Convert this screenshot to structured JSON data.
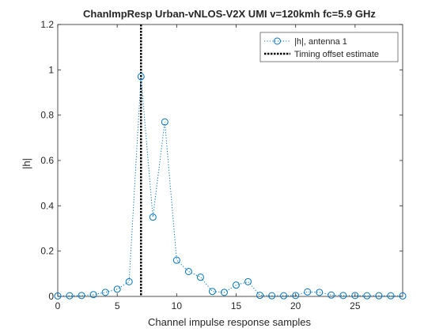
{
  "chart_data": {
    "type": "scatter",
    "title": "ChanImpResp Urban-vNLOS-V2X UMI v=120kmh fc=5.9 GHz",
    "xlabel": "Channel impulse response samples",
    "ylabel": "|h|",
    "xlim": [
      0,
      29
    ],
    "ylim": [
      0,
      1.2
    ],
    "xticks": [
      0,
      5,
      10,
      15,
      20,
      25
    ],
    "yticks": [
      0,
      0.2,
      0.4,
      0.6,
      0.8,
      1,
      1.2
    ],
    "grid": false,
    "legend_position": "top-right",
    "series": [
      {
        "name": "|h|, antenna 1",
        "style": "dotted-line-circle-markers",
        "color": "#0072BD",
        "x": [
          0,
          1,
          2,
          3,
          4,
          5,
          6,
          7,
          8,
          9,
          10,
          11,
          12,
          13,
          14,
          15,
          16,
          17,
          18,
          19,
          20,
          21,
          22,
          23,
          24,
          25,
          26,
          27,
          28,
          29
        ],
        "y": [
          0.002,
          0.003,
          0.004,
          0.008,
          0.018,
          0.032,
          0.065,
          0.97,
          0.35,
          0.77,
          0.16,
          0.11,
          0.085,
          0.022,
          0.018,
          0.05,
          0.065,
          0.005,
          0.003,
          0.003,
          0.004,
          0.02,
          0.018,
          0.006,
          0.004,
          0.004,
          0.003,
          0.003,
          0.003,
          0.002
        ]
      },
      {
        "name": "Timing offset estimate",
        "style": "vertical-dotted-line",
        "color": "#000000",
        "x_value": 7
      }
    ]
  }
}
